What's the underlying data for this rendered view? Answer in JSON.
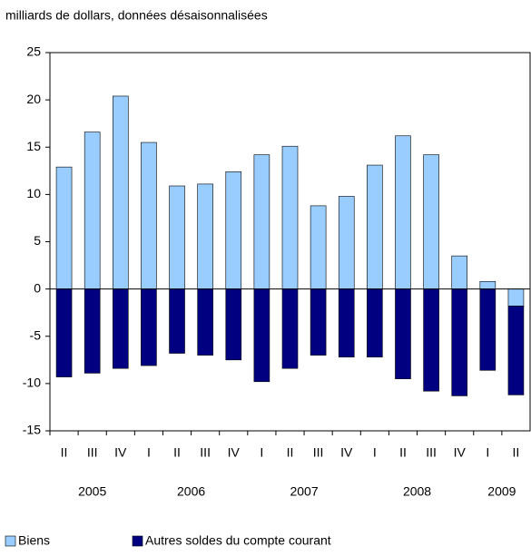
{
  "chart_data": {
    "type": "bar",
    "stacked": true,
    "subtitle": "milliards de dollars, données désaisonnalisées",
    "categories": [
      "II",
      "III",
      "IV",
      "I",
      "II",
      "III",
      "IV",
      "I",
      "II",
      "III",
      "IV",
      "I",
      "II",
      "III",
      "IV",
      "I",
      "II"
    ],
    "years": [
      {
        "label": "2005",
        "span": 3
      },
      {
        "label": "2006",
        "span": 4
      },
      {
        "label": "2007",
        "span": 4
      },
      {
        "label": "2008",
        "span": 4
      },
      {
        "label": "2009",
        "span": 2
      }
    ],
    "series": [
      {
        "name": "Biens",
        "color": "#99ccff",
        "values": [
          12.9,
          16.6,
          20.4,
          15.5,
          10.9,
          11.1,
          12.4,
          14.2,
          15.1,
          8.8,
          9.8,
          13.1,
          16.2,
          14.2,
          3.5,
          0.8,
          -1.8
        ]
      },
      {
        "name": "Autres soldes du compte courant",
        "color": "#000080",
        "values": [
          -9.3,
          -8.9,
          -8.4,
          -8.1,
          -6.8,
          -7.0,
          -7.5,
          -9.8,
          -8.4,
          -7.0,
          -7.2,
          -7.2,
          -9.5,
          -10.8,
          -11.3,
          -8.6,
          -9.4
        ]
      }
    ],
    "ylim": [
      -15,
      25
    ],
    "yticks": [
      -15,
      -10,
      -5,
      0,
      5,
      10,
      15,
      20,
      25
    ],
    "legend": "bottom-left"
  }
}
